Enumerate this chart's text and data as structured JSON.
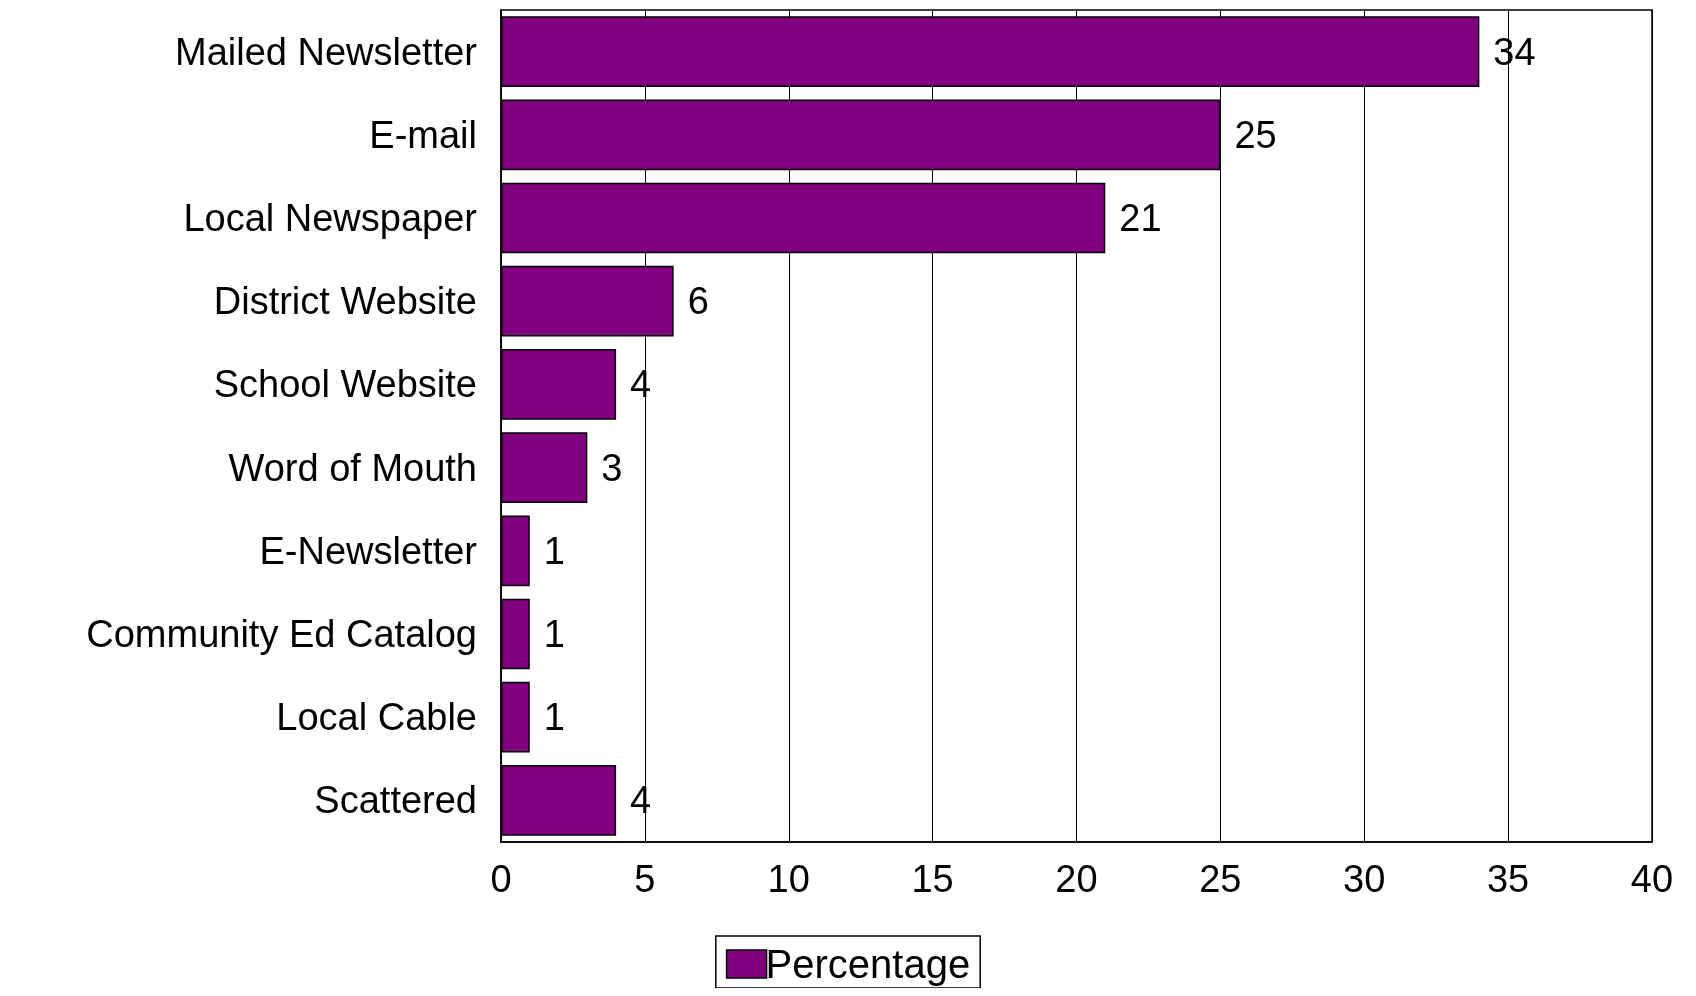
{
  "chart_data": {
    "type": "bar",
    "orientation": "horizontal",
    "categories": [
      "Mailed Newsletter",
      "E-mail",
      "Local Newspaper",
      "District Website",
      "School Website",
      "Word of Mouth",
      "E-Newsletter",
      "Community Ed Catalog",
      "Local Cable",
      "Scattered"
    ],
    "series": [
      {
        "name": "Percentage",
        "color": "#800080",
        "values": [
          34,
          25,
          21,
          6,
          4,
          3,
          1,
          1,
          1,
          4
        ]
      }
    ],
    "xlim": [
      0,
      40
    ],
    "xticks": [
      0,
      5,
      10,
      15,
      20,
      25,
      30,
      35,
      40
    ],
    "grid": "x",
    "legend": "bottom",
    "data_labels": true
  }
}
